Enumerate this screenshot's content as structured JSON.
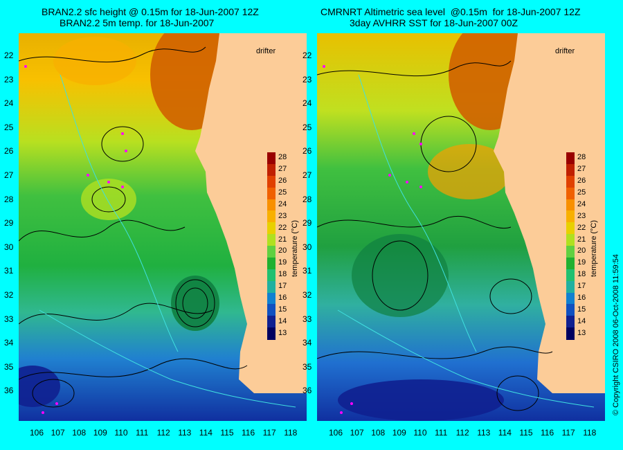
{
  "left_panel": {
    "title_line1": "BRAN2.2 sfc height @ 0.15m for 18-Jun-2007 12Z",
    "title_line2": "BRAN2.2 5m temp. for 18-Jun-2007",
    "drifter_label": "drifter"
  },
  "right_panel": {
    "title_line1": "CMRNRT Altimetric sea level  @0.15m  for 18-Jun-2007 12Z",
    "title_line2": "3day AVHRR SST for 18-Jun-2007 00Z",
    "drifter_label": "drifter"
  },
  "latitudes": [
    "22",
    "23",
    "24",
    "25",
    "26",
    "27",
    "28",
    "29",
    "30",
    "31",
    "32",
    "33",
    "34",
    "35",
    "36"
  ],
  "longitudes": [
    "106",
    "107",
    "108",
    "109",
    "110",
    "111",
    "112",
    "113",
    "114",
    "115",
    "116",
    "117",
    "118"
  ],
  "colorbar": {
    "label": "temperature (°C)",
    "ticks": [
      "28",
      "27",
      "26",
      "25",
      "24",
      "23",
      "22",
      "21",
      "20",
      "19",
      "18",
      "17",
      "16",
      "15",
      "14",
      "13"
    ],
    "colors": [
      "#990000",
      "#c02000",
      "#e04000",
      "#f06000",
      "#f89000",
      "#f8b000",
      "#e8d000",
      "#b0e020",
      "#60d040",
      "#20b030",
      "#20c070",
      "#20b0a0",
      "#1080d0",
      "#1050c0",
      "#102090",
      "#000060"
    ]
  },
  "colors": {
    "background": "#00ffff",
    "land": "#fccc98"
  },
  "copyright": "© Copyright CSIRO 2008    06-Oct-2008 11:59:54"
}
